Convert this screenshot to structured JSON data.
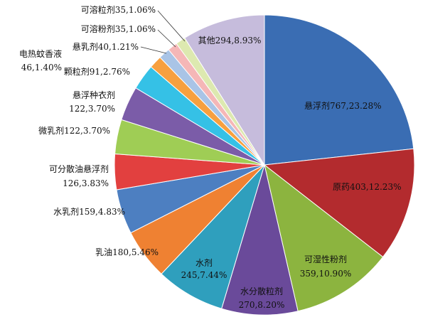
{
  "chart_data": {
    "type": "pie",
    "title": "",
    "slices": [
      {
        "name": "悬浮剂",
        "value": 767,
        "pct": "23.28%",
        "color": "#3a6db3"
      },
      {
        "name": "原药",
        "value": 403,
        "pct": "12.23%",
        "color": "#b32b2e"
      },
      {
        "name": "可湿性粉剂",
        "value": 359,
        "pct": "10.90%",
        "color": "#8cb43f"
      },
      {
        "name": "水分散粒剂",
        "value": 270,
        "pct": "8.20%",
        "color": "#6a4a9a"
      },
      {
        "name": "水剂",
        "value": 245,
        "pct": "7.44%",
        "color": "#2f9fbd"
      },
      {
        "name": "乳油",
        "value": 180,
        "pct": "5.46%",
        "color": "#ef8132"
      },
      {
        "name": "水乳剂",
        "value": 159,
        "pct": "4.83%",
        "color": "#4d7fc1"
      },
      {
        "name": "可分散油悬浮剂",
        "value": 126,
        "pct": "3.83%",
        "color": "#e2403f"
      },
      {
        "name": "微乳剂",
        "value": 122,
        "pct": "3.70%",
        "color": "#9fcd55"
      },
      {
        "name": "悬浮种衣剂",
        "value": 122,
        "pct": "3.70%",
        "color": "#7b5ca8"
      },
      {
        "name": "颗粒剂",
        "value": 91,
        "pct": "2.76%",
        "color": "#35c1e6"
      },
      {
        "name": "电热蚊香液",
        "value": 46,
        "pct": "1.40%",
        "color": "#f7a03f"
      },
      {
        "name": "悬乳剂",
        "value": 40,
        "pct": "1.21%",
        "color": "#a9c4e6"
      },
      {
        "name": "可溶粉剂",
        "value": 35,
        "pct": "1.06%",
        "color": "#f5b7b7"
      },
      {
        "name": "可溶粒剂",
        "value": 35,
        "pct": "1.06%",
        "color": "#dde9b0"
      },
      {
        "name": "其他",
        "value": 294,
        "pct": "8.93%",
        "color": "#c6bcdc"
      }
    ]
  }
}
